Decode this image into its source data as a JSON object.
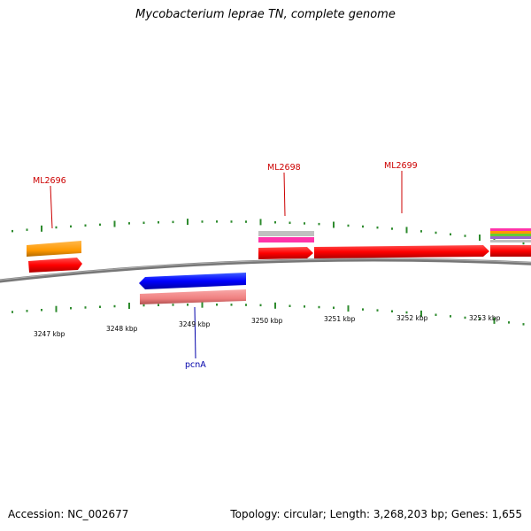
{
  "title": "Mycobacterium leprae TN, complete genome",
  "footer": {
    "accession": "Accession: NC_002677",
    "summary": "Topology: circular; Length: 3,268,203 bp; Genes: 1,655"
  },
  "colors": {
    "backbone": "#7a7a7a",
    "tick": "#2e8b2e",
    "forward_gene": "#ff0000",
    "reverse_gene": "#0000ff",
    "label_forward": "#cc0000",
    "label_reverse": "#0000aa",
    "orange": "#ff9900",
    "pink": "#f08080",
    "magenta": "#ff33aa",
    "grey": "#c0c0c0"
  },
  "axis": {
    "unit": "kbp",
    "ticks": [
      "3247 kbp",
      "3248 kbp",
      "3249 kbp",
      "3250 kbp",
      "3251 kbp",
      "3252 kbp",
      "3253 kbp"
    ]
  },
  "gene_labels": [
    {
      "name": "ML2696",
      "strand": "forward"
    },
    {
      "name": "ML2698",
      "strand": "forward"
    },
    {
      "name": "ML2699",
      "strand": "forward"
    },
    {
      "name": "pcnA",
      "strand": "reverse"
    }
  ]
}
